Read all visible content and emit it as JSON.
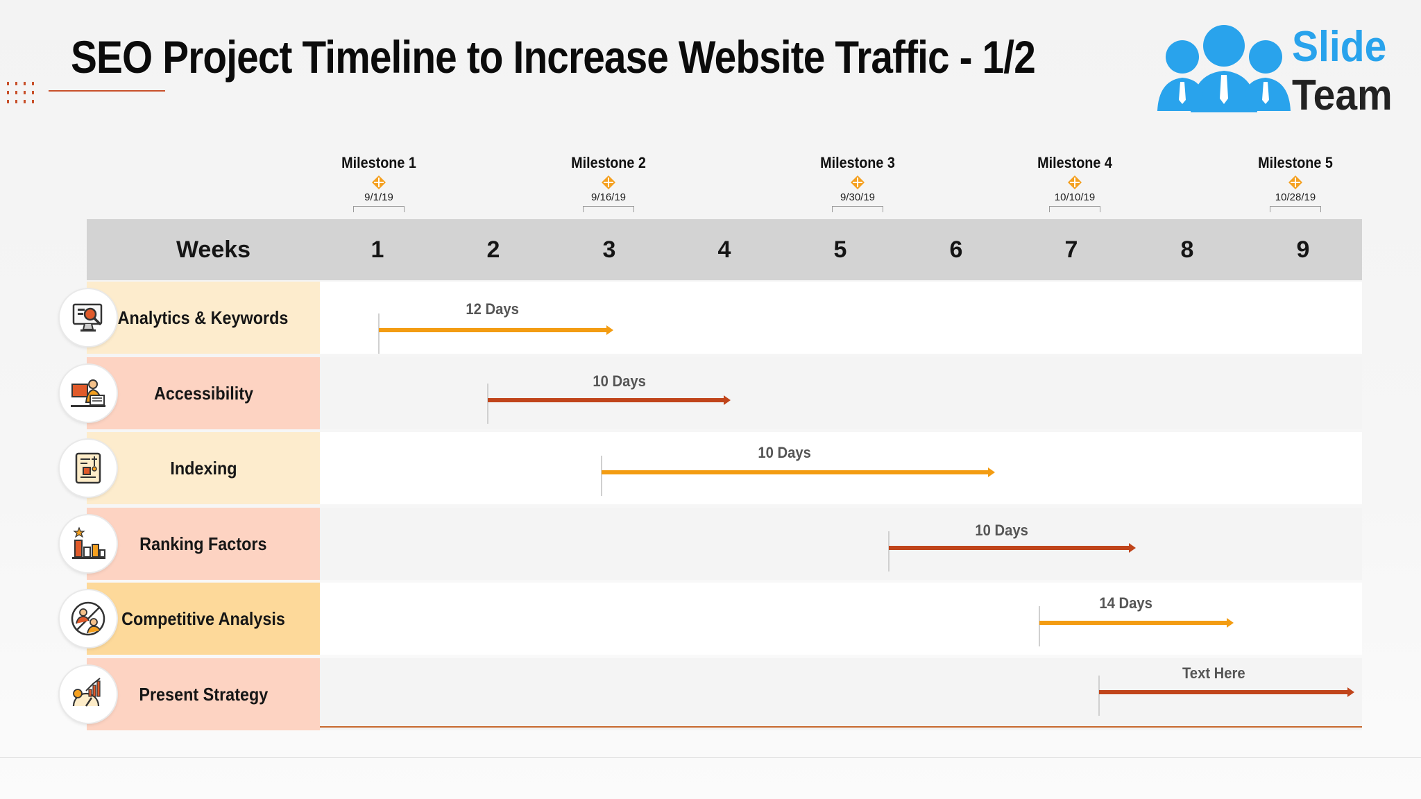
{
  "slide": {
    "title": "SEO Project Timeline to Increase Website Traffic - 1/2"
  },
  "logo": {
    "line1": "Slide",
    "line2": "Team",
    "colors": {
      "accent": "#29a3ec",
      "text": "#222222"
    }
  },
  "timeline": {
    "header_label": "Weeks",
    "weeks": [
      "1",
      "2",
      "3",
      "4",
      "5",
      "6",
      "7",
      "8",
      "9"
    ],
    "milestones": [
      {
        "label": "Milestone 1",
        "date": "9/1/19",
        "icon": "diamond-target-icon"
      },
      {
        "label": "Milestone 2",
        "date": "9/16/19",
        "icon": "diamond-target-icon"
      },
      {
        "label": "Milestone 3",
        "date": "9/30/19",
        "icon": "diamond-target-icon"
      },
      {
        "label": "Milestone 4",
        "date": "10/10/19",
        "icon": "diamond-target-icon"
      },
      {
        "label": "Milestone 5",
        "date": "10/28/19",
        "icon": "diamond-target-icon"
      }
    ],
    "tasks": [
      {
        "name": "Analytics & Keywords",
        "duration_label": "12 Days",
        "icon": "analytics-monitor-icon",
        "bar_color": "#f39c12"
      },
      {
        "name": "Accessibility",
        "duration_label": "10 Days",
        "icon": "accessibility-user-icon",
        "bar_color": "#c0441a"
      },
      {
        "name": "Indexing",
        "duration_label": "10 Days",
        "icon": "indexing-blueprint-icon",
        "bar_color": "#f39c12"
      },
      {
        "name": "Ranking Factors",
        "duration_label": "10 Days",
        "icon": "ranking-chart-icon",
        "bar_color": "#c0441a"
      },
      {
        "name": "Competitive Analysis",
        "duration_label": "14 Days",
        "icon": "competitive-analysis-icon",
        "bar_color": "#f39c12"
      },
      {
        "name": "Present Strategy",
        "duration_label": "Text Here",
        "icon": "strategy-growth-icon",
        "bar_color": "#c0441a"
      }
    ],
    "colors": {
      "header_band": "#d3d3d3",
      "label_peach": "#fdd3c2",
      "label_cream": "#fdeccd",
      "label_gold": "#fdd99a",
      "accent_line": "#c7692e",
      "milestone_icon": "#f4a020"
    }
  }
}
